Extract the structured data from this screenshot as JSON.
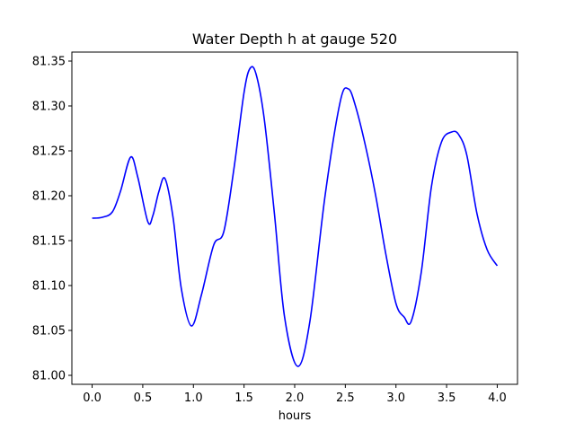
{
  "chart_data": {
    "type": "line",
    "title": "Water Depth h at gauge 520",
    "xlabel": "hours",
    "ylabel": "",
    "xlim": [
      -0.2,
      4.2
    ],
    "ylim": [
      80.99,
      81.36
    ],
    "xticks": [
      0.0,
      0.5,
      1.0,
      1.5,
      2.0,
      2.5,
      3.0,
      3.5,
      4.0
    ],
    "xtick_labels": [
      "0.0",
      "0.5",
      "1.0",
      "1.5",
      "2.0",
      "2.5",
      "3.0",
      "3.5",
      "4.0"
    ],
    "yticks": [
      81.0,
      81.05,
      81.1,
      81.15,
      81.2,
      81.25,
      81.3,
      81.35
    ],
    "ytick_labels": [
      "81.00",
      "81.05",
      "81.10",
      "81.15",
      "81.20",
      "81.25",
      "81.30",
      "81.35"
    ],
    "grid": false,
    "series": [
      {
        "color": "#0000ff",
        "x": [
          0.0,
          0.1,
          0.2,
          0.28,
          0.38,
          0.45,
          0.55,
          0.6,
          0.66,
          0.72,
          0.8,
          0.88,
          0.98,
          1.08,
          1.2,
          1.3,
          1.4,
          1.5,
          1.56,
          1.62,
          1.7,
          1.8,
          1.9,
          2.03,
          2.15,
          2.3,
          2.45,
          2.53,
          2.6,
          2.7,
          2.8,
          2.9,
          3.0,
          3.08,
          3.15,
          3.25,
          3.35,
          3.45,
          3.55,
          3.62,
          3.7,
          3.8,
          3.9,
          4.0
        ],
        "y": [
          81.175,
          81.176,
          81.182,
          81.205,
          81.243,
          81.221,
          81.171,
          81.178,
          81.205,
          81.219,
          81.175,
          81.097,
          81.055,
          81.09,
          81.145,
          81.16,
          81.23,
          81.315,
          81.342,
          81.335,
          81.285,
          81.18,
          81.065,
          81.01,
          81.06,
          81.2,
          81.305,
          81.319,
          81.3,
          81.255,
          81.2,
          81.135,
          81.08,
          81.065,
          81.06,
          81.115,
          81.21,
          81.26,
          81.271,
          81.268,
          81.245,
          81.18,
          81.14,
          81.122
        ]
      }
    ]
  }
}
